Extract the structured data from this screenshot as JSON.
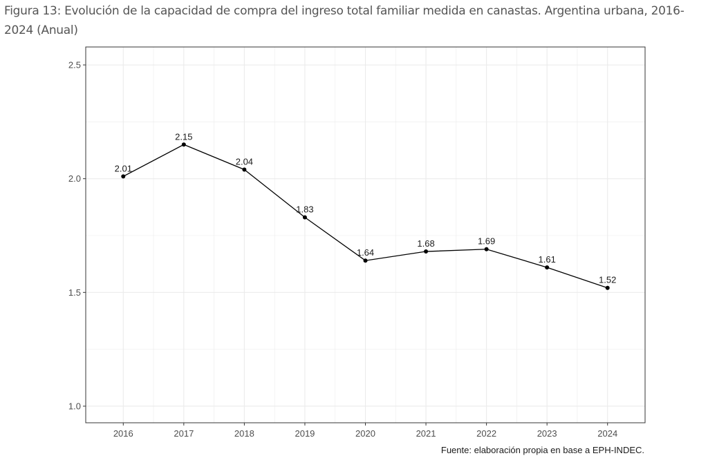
{
  "chart_data": {
    "type": "line",
    "title": "Figura 13: Evolución de la capacidad de compra del ingreso total familiar medida en canastas. Argentina urbana, 2016-2024 (Anual)",
    "caption": "Fuente: elaboración propia en base a EPH-INDEC.",
    "xlabel": "",
    "ylabel": "",
    "x": [
      2016,
      2017,
      2018,
      2019,
      2020,
      2021,
      2022,
      2023,
      2024
    ],
    "values": [
      2.01,
      2.15,
      2.04,
      1.83,
      1.64,
      1.68,
      1.69,
      1.61,
      1.52
    ],
    "data_labels": [
      "2.01",
      "2.15",
      "2.04",
      "1.83",
      "1.64",
      "1.68",
      "1.69",
      "1.61",
      "1.52"
    ],
    "x_tick_labels": [
      "2016",
      "2017",
      "2018",
      "2019",
      "2020",
      "2021",
      "2022",
      "2023",
      "2024"
    ],
    "y_ticks": [
      1.0,
      1.5,
      2.0,
      2.5
    ],
    "y_tick_labels": [
      "1.0",
      "1.5",
      "2.0",
      "2.5"
    ],
    "ylim": [
      0.927,
      2.579
    ],
    "xlim": [
      2015.38,
      2024.62
    ],
    "grid": true,
    "line_color": "#000000",
    "gridline_color": "#ebebeb"
  }
}
